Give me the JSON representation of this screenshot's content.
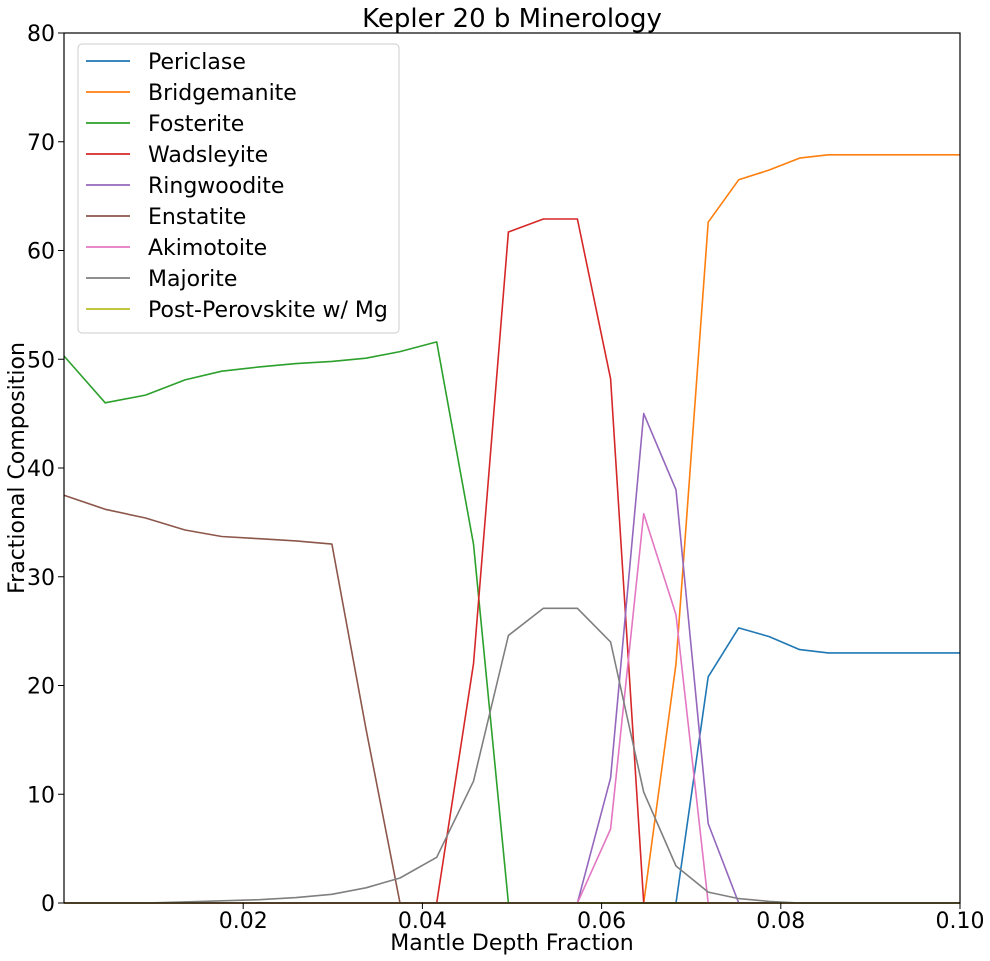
{
  "chart_data": {
    "type": "line",
    "title": "Kepler 20 b Minerology",
    "xlabel": "Mantle Depth Fraction",
    "ylabel": "Fractional Composition",
    "xlim": [
      0,
      0.1
    ],
    "ylim": [
      0,
      80
    ],
    "xticks": [
      0.02,
      0.04,
      0.06,
      0.08,
      0.1
    ],
    "xtick_labels": [
      "0.02",
      "0.04",
      "0.06",
      "0.08",
      "0.10"
    ],
    "yticks": [
      0,
      10,
      20,
      30,
      40,
      50,
      60,
      70,
      80
    ],
    "ytick_labels": [
      "0",
      "10",
      "20",
      "30",
      "40",
      "50",
      "60",
      "70",
      "80"
    ],
    "grid": false,
    "legend_position": "top-left",
    "x": [
      0.0,
      0.0046,
      0.0091,
      0.0135,
      0.0176,
      0.0218,
      0.0259,
      0.0299,
      0.0337,
      0.0375,
      0.0416,
      0.0457,
      0.0496,
      0.0535,
      0.0573,
      0.061,
      0.0647,
      0.0683,
      0.0719,
      0.0753,
      0.0787,
      0.0821,
      0.0853,
      0.1
    ],
    "series": [
      {
        "name": "Periclase",
        "color": "#1f77b4",
        "values": [
          0,
          0,
          0,
          0,
          0,
          0,
          0,
          0,
          0,
          0,
          0,
          0,
          0,
          0,
          0,
          0,
          0,
          0,
          20.8,
          25.3,
          24.5,
          23.3,
          23.0,
          23.0
        ]
      },
      {
        "name": "Bridgemanite",
        "color": "#ff7f0e",
        "values": [
          0,
          0,
          0,
          0,
          0,
          0,
          0,
          0,
          0,
          0,
          0,
          0,
          0,
          0,
          0,
          0,
          0,
          22.0,
          62.6,
          66.5,
          67.4,
          68.5,
          68.8,
          68.8
        ]
      },
      {
        "name": "Fosterite",
        "color": "#2ca02c",
        "values": [
          50.3,
          46.0,
          46.7,
          48.1,
          48.9,
          49.3,
          49.6,
          49.8,
          50.1,
          50.7,
          51.6,
          33.0,
          0,
          0,
          0,
          0,
          0,
          0,
          0,
          0,
          0,
          0,
          0,
          0
        ]
      },
      {
        "name": "Wadsleyite",
        "color": "#d62728",
        "values": [
          0,
          0,
          0,
          0,
          0,
          0,
          0,
          0,
          0,
          0,
          0,
          22.0,
          61.7,
          62.9,
          62.9,
          48.2,
          0,
          0,
          0,
          0,
          0,
          0,
          0,
          0
        ]
      },
      {
        "name": "Ringwoodite",
        "color": "#9467bd",
        "values": [
          0,
          0,
          0,
          0,
          0,
          0,
          0,
          0,
          0,
          0,
          0,
          0,
          0,
          0,
          0,
          11.5,
          45.0,
          38.0,
          7.3,
          0,
          0,
          0,
          0,
          0
        ]
      },
      {
        "name": "Enstatite",
        "color": "#8c564b",
        "values": [
          37.5,
          36.2,
          35.4,
          34.3,
          33.7,
          33.5,
          33.3,
          33.0,
          16.0,
          0,
          0,
          0,
          0,
          0,
          0,
          0,
          0,
          0,
          0,
          0,
          0,
          0,
          0,
          0
        ]
      },
      {
        "name": "Akimotoite",
        "color": "#e377c2",
        "values": [
          0,
          0,
          0,
          0,
          0,
          0,
          0,
          0,
          0,
          0,
          0,
          0,
          0,
          0,
          0,
          6.8,
          35.8,
          26.5,
          0,
          0,
          0,
          0,
          0,
          0
        ]
      },
      {
        "name": "Majorite",
        "color": "#7f7f7f",
        "values": [
          0,
          0,
          0,
          0.1,
          0.2,
          0.3,
          0.5,
          0.8,
          1.4,
          2.3,
          4.2,
          11.2,
          24.6,
          27.1,
          27.1,
          24.0,
          10.2,
          3.4,
          1.0,
          0.4,
          0.15,
          0,
          0,
          0
        ]
      },
      {
        "name": "Post-Perovskite w/ Mg",
        "color": "#bcbd22",
        "values": [
          0,
          0,
          0,
          0,
          0,
          0,
          0,
          0,
          0,
          0,
          0,
          0,
          0,
          0,
          0,
          0,
          0,
          0,
          0,
          0,
          0,
          0,
          0,
          0
        ]
      }
    ]
  }
}
